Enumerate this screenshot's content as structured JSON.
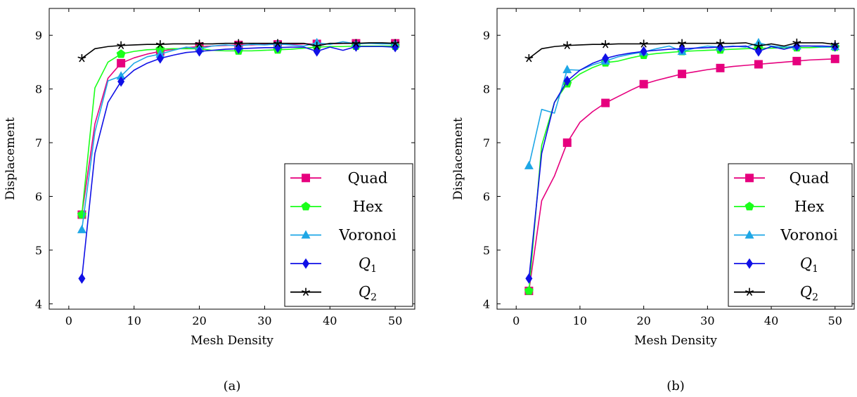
{
  "chart_data": [
    {
      "type": "line",
      "caption": "(a)",
      "xlabel": "Mesh Density",
      "ylabel": "Displacement",
      "xlim": [
        -3,
        53
      ],
      "ylim": [
        3.9,
        9.5
      ],
      "xticks": [
        0,
        10,
        20,
        30,
        40,
        50
      ],
      "yticks": [
        4,
        5,
        6,
        7,
        8,
        9
      ],
      "legend_position": "bottom-right",
      "series": [
        {
          "name": "Quad",
          "color": "#e6007e",
          "marker": "square",
          "x": [
            2,
            4,
            6,
            8,
            10,
            12,
            14,
            16,
            18,
            20,
            22,
            24,
            26,
            28,
            30,
            32,
            34,
            36,
            38,
            40,
            42,
            44,
            46,
            48,
            50
          ],
          "y": [
            5.66,
            7.35,
            8.2,
            8.48,
            8.58,
            8.65,
            8.7,
            8.74,
            8.77,
            8.79,
            8.8,
            8.81,
            8.82,
            8.82,
            8.83,
            8.83,
            8.83,
            8.84,
            8.84,
            8.84,
            8.85,
            8.85,
            8.85,
            8.85,
            8.85
          ],
          "marker_x": [
            2,
            8,
            14,
            20,
            26,
            32,
            38,
            44,
            50
          ],
          "marker_y": [
            5.66,
            8.48,
            8.7,
            8.79,
            8.82,
            8.83,
            8.84,
            8.85,
            8.85
          ]
        },
        {
          "name": "Hex",
          "color": "#1aff1a",
          "marker": "pentagon",
          "x": [
            2,
            4,
            6,
            8,
            10,
            12,
            14,
            16,
            18,
            20,
            22,
            24,
            26,
            28,
            30,
            32,
            34,
            36,
            38,
            40,
            42,
            44,
            46,
            48,
            50
          ],
          "y": [
            5.66,
            8.02,
            8.5,
            8.65,
            8.7,
            8.73,
            8.74,
            8.75,
            8.75,
            8.75,
            8.72,
            8.71,
            8.71,
            8.71,
            8.72,
            8.73,
            8.74,
            8.76,
            8.78,
            8.79,
            8.79,
            8.8,
            8.8,
            8.8,
            8.8
          ],
          "marker_x": [
            2,
            8,
            14,
            20,
            26,
            32,
            38,
            44,
            50
          ],
          "marker_y": [
            5.66,
            8.65,
            8.74,
            8.75,
            8.71,
            8.73,
            8.78,
            8.8,
            8.8
          ]
        },
        {
          "name": "Voronoi",
          "color": "#1ea7e6",
          "marker": "triangle",
          "x": [
            2,
            4,
            6,
            8,
            10,
            12,
            14,
            16,
            18,
            20,
            22,
            24,
            26,
            28,
            30,
            32,
            34,
            36,
            38,
            40,
            42,
            44,
            46,
            48,
            50
          ],
          "y": [
            5.38,
            7.2,
            8.15,
            8.24,
            8.48,
            8.6,
            8.65,
            8.72,
            8.78,
            8.75,
            8.8,
            8.82,
            8.8,
            8.83,
            8.82,
            8.84,
            8.82,
            8.8,
            8.86,
            8.83,
            8.88,
            8.84,
            8.85,
            8.84,
            8.84
          ],
          "marker_x": [
            2,
            8,
            14,
            20,
            26,
            32,
            38,
            44,
            50
          ],
          "marker_y": [
            5.38,
            8.24,
            8.65,
            8.75,
            8.8,
            8.84,
            8.86,
            8.84,
            8.84
          ]
        },
        {
          "name": "Q_1",
          "color": "#1010e6",
          "marker": "diamond",
          "x": [
            2,
            4,
            6,
            8,
            10,
            12,
            14,
            16,
            18,
            20,
            22,
            24,
            26,
            28,
            30,
            32,
            34,
            36,
            38,
            40,
            42,
            44,
            46,
            48,
            50
          ],
          "y": [
            4.47,
            6.8,
            7.75,
            8.14,
            8.35,
            8.48,
            8.57,
            8.63,
            8.68,
            8.7,
            8.72,
            8.74,
            8.75,
            8.76,
            8.77,
            8.77,
            8.78,
            8.78,
            8.7,
            8.78,
            8.72,
            8.79,
            8.79,
            8.79,
            8.78
          ],
          "marker_x": [
            2,
            8,
            14,
            20,
            26,
            32,
            38,
            44,
            50
          ],
          "marker_y": [
            4.47,
            8.14,
            8.57,
            8.7,
            8.75,
            8.77,
            8.7,
            8.79,
            8.78
          ]
        },
        {
          "name": "Q_2",
          "color": "#000000",
          "marker": "star",
          "x": [
            2,
            4,
            6,
            8,
            10,
            12,
            14,
            16,
            18,
            20,
            22,
            24,
            26,
            28,
            30,
            32,
            34,
            36,
            38,
            40,
            42,
            44,
            46,
            48,
            50
          ],
          "y": [
            8.57,
            8.75,
            8.79,
            8.81,
            8.82,
            8.83,
            8.83,
            8.84,
            8.84,
            8.84,
            8.84,
            8.85,
            8.85,
            8.85,
            8.85,
            8.85,
            8.85,
            8.85,
            8.8,
            8.85,
            8.85,
            8.85,
            8.86,
            8.86,
            8.85
          ],
          "marker_x": [
            2,
            8,
            14,
            20,
            26,
            32,
            38,
            44,
            50
          ],
          "marker_y": [
            8.57,
            8.81,
            8.83,
            8.84,
            8.85,
            8.85,
            8.8,
            8.85,
            8.85
          ]
        }
      ]
    },
    {
      "type": "line",
      "caption": "(b)",
      "xlabel": "Mesh Density",
      "ylabel": "Displacement",
      "xlim": [
        -3,
        53
      ],
      "ylim": [
        3.9,
        9.5
      ],
      "xticks": [
        0,
        10,
        20,
        30,
        40,
        50
      ],
      "yticks": [
        4,
        5,
        6,
        7,
        8,
        9
      ],
      "legend_position": "bottom-right",
      "series": [
        {
          "name": "Quad",
          "color": "#e6007e",
          "marker": "square",
          "x": [
            2,
            4,
            6,
            8,
            10,
            12,
            14,
            16,
            18,
            20,
            22,
            24,
            26,
            28,
            30,
            32,
            34,
            36,
            38,
            40,
            42,
            44,
            46,
            48,
            50
          ],
          "y": [
            4.24,
            5.92,
            6.38,
            7.0,
            7.38,
            7.58,
            7.74,
            7.86,
            7.98,
            8.09,
            8.16,
            8.22,
            8.28,
            8.32,
            8.36,
            8.39,
            8.42,
            8.44,
            8.46,
            8.48,
            8.5,
            8.52,
            8.54,
            8.55,
            8.56
          ],
          "marker_x": [
            2,
            8,
            14,
            20,
            26,
            32,
            38,
            44,
            50
          ],
          "marker_y": [
            4.24,
            7.0,
            7.74,
            8.09,
            8.28,
            8.39,
            8.46,
            8.52,
            8.56
          ]
        },
        {
          "name": "Hex",
          "color": "#1aff1a",
          "marker": "pentagon",
          "x": [
            2,
            4,
            6,
            8,
            10,
            12,
            14,
            16,
            18,
            20,
            22,
            24,
            26,
            28,
            30,
            32,
            34,
            36,
            38,
            40,
            42,
            44,
            46,
            48,
            50
          ],
          "y": [
            4.24,
            6.95,
            7.75,
            8.1,
            8.28,
            8.4,
            8.49,
            8.52,
            8.58,
            8.63,
            8.66,
            8.68,
            8.7,
            8.71,
            8.72,
            8.73,
            8.74,
            8.75,
            8.76,
            8.76,
            8.77,
            8.77,
            8.77,
            8.78,
            8.78
          ],
          "marker_x": [
            2,
            8,
            14,
            20,
            26,
            32,
            38,
            44,
            50
          ],
          "marker_y": [
            4.24,
            8.1,
            8.49,
            8.63,
            8.7,
            8.73,
            8.76,
            8.77,
            8.78
          ]
        },
        {
          "name": "Voronoi",
          "color": "#1ea7e6",
          "marker": "triangle",
          "x": [
            2,
            4,
            6,
            8,
            10,
            12,
            14,
            16,
            18,
            20,
            22,
            24,
            26,
            28,
            30,
            32,
            34,
            36,
            38,
            40,
            42,
            44,
            46,
            48,
            50
          ],
          "y": [
            6.57,
            7.62,
            7.55,
            8.36,
            8.35,
            8.45,
            8.52,
            8.6,
            8.65,
            8.69,
            8.75,
            8.8,
            8.7,
            8.76,
            8.8,
            8.78,
            8.8,
            8.78,
            8.86,
            8.8,
            8.78,
            8.8,
            8.8,
            8.78,
            8.79
          ],
          "marker_x": [
            2,
            8,
            14,
            20,
            26,
            32,
            38,
            44,
            50
          ],
          "marker_y": [
            6.57,
            8.36,
            8.52,
            8.69,
            8.7,
            8.78,
            8.86,
            8.8,
            8.79
          ]
        },
        {
          "name": "Q_1",
          "color": "#1010e6",
          "marker": "diamond",
          "x": [
            2,
            4,
            6,
            8,
            10,
            12,
            14,
            16,
            18,
            20,
            22,
            24,
            26,
            28,
            30,
            32,
            34,
            36,
            38,
            40,
            42,
            44,
            46,
            48,
            50
          ],
          "y": [
            4.47,
            6.8,
            7.75,
            8.15,
            8.35,
            8.48,
            8.57,
            8.63,
            8.67,
            8.7,
            8.72,
            8.74,
            8.75,
            8.76,
            8.77,
            8.78,
            8.79,
            8.8,
            8.7,
            8.79,
            8.74,
            8.8,
            8.8,
            8.8,
            8.79
          ],
          "marker_x": [
            2,
            8,
            14,
            20,
            26,
            32,
            38,
            44,
            50
          ],
          "marker_y": [
            4.47,
            8.15,
            8.57,
            8.7,
            8.75,
            8.78,
            8.7,
            8.8,
            8.79
          ]
        },
        {
          "name": "Q_2",
          "color": "#000000",
          "marker": "star",
          "x": [
            2,
            4,
            6,
            8,
            10,
            12,
            14,
            16,
            18,
            20,
            22,
            24,
            26,
            28,
            30,
            32,
            34,
            36,
            38,
            40,
            42,
            44,
            46,
            48,
            50
          ],
          "y": [
            8.57,
            8.75,
            8.79,
            8.81,
            8.82,
            8.83,
            8.83,
            8.84,
            8.84,
            8.84,
            8.84,
            8.85,
            8.85,
            8.85,
            8.85,
            8.85,
            8.85,
            8.86,
            8.8,
            8.84,
            8.8,
            8.86,
            8.86,
            8.86,
            8.83
          ],
          "marker_x": [
            2,
            8,
            14,
            20,
            26,
            32,
            38,
            44,
            50
          ],
          "marker_y": [
            8.57,
            8.81,
            8.83,
            8.84,
            8.85,
            8.85,
            8.8,
            8.86,
            8.83
          ]
        }
      ]
    }
  ]
}
